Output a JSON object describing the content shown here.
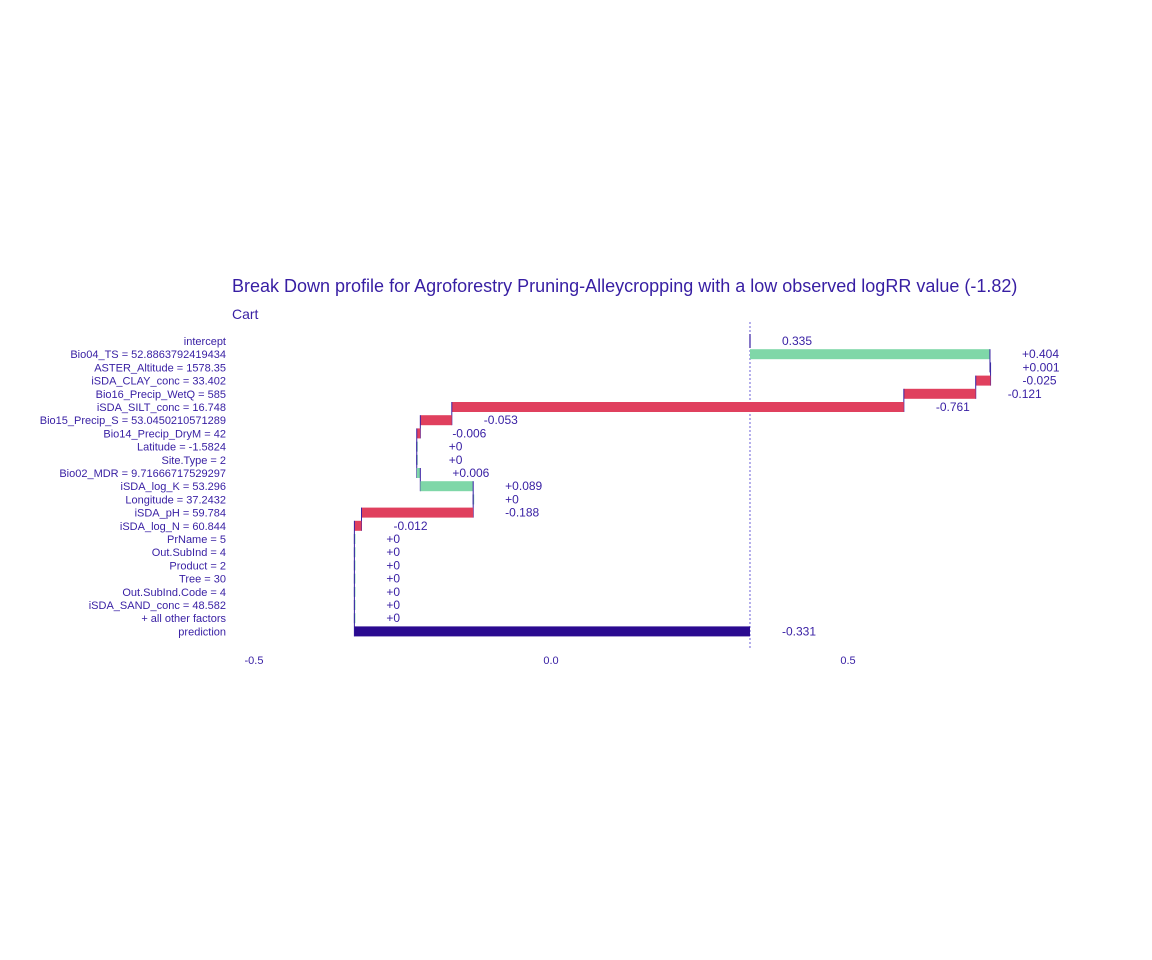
{
  "chart_data": {
    "type": "bar",
    "title": "Break Down profile for Agroforestry Pruning-Alleycropping with a low observed logRR value (-1.82)",
    "subtitle": "Cart",
    "xlim": [
      -0.5,
      0.7
    ],
    "x_ticks": [
      {
        "value": -0.5,
        "label": "-0.5"
      },
      {
        "value": 0.0,
        "label": "0.0"
      },
      {
        "value": 0.5,
        "label": "0.5"
      }
    ],
    "intercept": 0.335,
    "colors": {
      "positive": "#7fd7a8",
      "negative": "#e0405e",
      "prediction": "#2a0a90",
      "connector": "#371ea3",
      "text": "#371ea3",
      "intercept_line": "#6b5fd8"
    },
    "rows": [
      {
        "label": "intercept",
        "start": 0.335,
        "end": 0.335,
        "value_label": "0.335",
        "kind": "intercept"
      },
      {
        "label": "Bio04_TS = 52.8863792419434",
        "start": 0.335,
        "end": 0.739,
        "value_label": "+0.404",
        "kind": "positive"
      },
      {
        "label": "ASTER_Altitude = 1578.35",
        "start": 0.739,
        "end": 0.74,
        "value_label": "+0.001",
        "kind": "positive"
      },
      {
        "label": "iSDA_CLAY_conc = 33.402",
        "start": 0.74,
        "end": 0.715,
        "value_label": "-0.025",
        "kind": "negative"
      },
      {
        "label": "Bio16_Precip_WetQ = 585",
        "start": 0.715,
        "end": 0.594,
        "value_label": "-0.121",
        "kind": "negative"
      },
      {
        "label": "iSDA_SILT_conc = 16.748",
        "start": 0.594,
        "end": -0.167,
        "value_label": "-0.761",
        "kind": "negative"
      },
      {
        "label": "Bio15_Precip_S = 53.0450210571289",
        "start": -0.167,
        "end": -0.22,
        "value_label": "-0.053",
        "kind": "negative"
      },
      {
        "label": "Bio14_Precip_DryM = 42",
        "start": -0.22,
        "end": -0.226,
        "value_label": "-0.006",
        "kind": "negative"
      },
      {
        "label": "Latitude = -1.5824",
        "start": -0.226,
        "end": -0.226,
        "value_label": "+0",
        "kind": "positive"
      },
      {
        "label": "Site.Type = 2",
        "start": -0.226,
        "end": -0.226,
        "value_label": "+0",
        "kind": "positive"
      },
      {
        "label": "Bio02_MDR = 9.71666717529297",
        "start": -0.226,
        "end": -0.22,
        "value_label": "+0.006",
        "kind": "positive"
      },
      {
        "label": "iSDA_log_K = 53.296",
        "start": -0.22,
        "end": -0.131,
        "value_label": "+0.089",
        "kind": "positive"
      },
      {
        "label": "Longitude = 37.2432",
        "start": -0.131,
        "end": -0.131,
        "value_label": "+0",
        "kind": "positive"
      },
      {
        "label": "iSDA_pH = 59.784",
        "start": -0.131,
        "end": -0.319,
        "value_label": "-0.188",
        "kind": "negative"
      },
      {
        "label": "iSDA_log_N = 60.844",
        "start": -0.319,
        "end": -0.331,
        "value_label": "-0.012",
        "kind": "negative"
      },
      {
        "label": "PrName = 5",
        "start": -0.331,
        "end": -0.331,
        "value_label": "+0",
        "kind": "positive"
      },
      {
        "label": "Out.SubInd = 4",
        "start": -0.331,
        "end": -0.331,
        "value_label": "+0",
        "kind": "positive"
      },
      {
        "label": "Product = 2",
        "start": -0.331,
        "end": -0.331,
        "value_label": "+0",
        "kind": "positive"
      },
      {
        "label": "Tree = 30",
        "start": -0.331,
        "end": -0.331,
        "value_label": "+0",
        "kind": "positive"
      },
      {
        "label": "Out.SubInd.Code = 4",
        "start": -0.331,
        "end": -0.331,
        "value_label": "+0",
        "kind": "positive"
      },
      {
        "label": "iSDA_SAND_conc = 48.582",
        "start": -0.331,
        "end": -0.331,
        "value_label": "+0",
        "kind": "positive"
      },
      {
        "label": "+ all other factors",
        "start": -0.331,
        "end": -0.331,
        "value_label": "+0",
        "kind": "positive"
      },
      {
        "label": "prediction",
        "start": 0.335,
        "end": -0.331,
        "value_label": "-0.331",
        "kind": "prediction"
      }
    ]
  }
}
